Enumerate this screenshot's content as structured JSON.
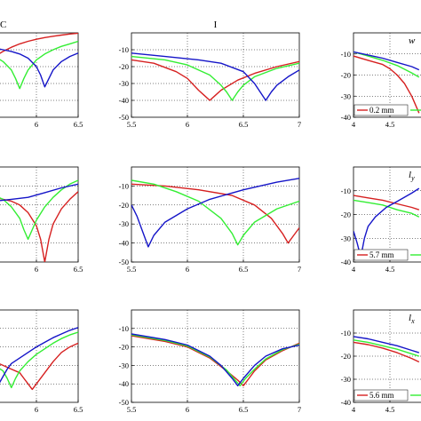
{
  "colors": {
    "red": "#d62020",
    "green": "#33ee33",
    "blue": "#1515c8"
  },
  "chart_data": [
    {
      "type": "line",
      "title": "C",
      "annotation": "",
      "xlim": [
        5.5,
        6.5
      ],
      "ylim": [
        -50,
        0
      ],
      "xticks": [
        "",
        "6",
        "6.5"
      ],
      "xtick_values": [
        5.5,
        6,
        6.5
      ],
      "yticks": [],
      "ytick_values": [],
      "legend": [],
      "series": [
        {
          "color": "red",
          "x": [
            5.5,
            5.6,
            5.7,
            5.8,
            5.9,
            6.0,
            6.1,
            6.2,
            6.3,
            6.4,
            6.5
          ],
          "y": [
            -14,
            -11,
            -8.5,
            -6.5,
            -5,
            -3.8,
            -2.8,
            -2,
            -1.3,
            -0.7,
            -0.2
          ]
        },
        {
          "color": "green",
          "x": [
            5.5,
            5.6,
            5.7,
            5.75,
            5.8,
            5.85,
            5.9,
            6.0,
            6.1,
            6.2,
            6.3,
            6.4,
            6.5
          ],
          "y": [
            -14,
            -17,
            -22,
            -27,
            -33,
            -27,
            -22,
            -16,
            -12.5,
            -10,
            -8,
            -6.5,
            -5
          ]
        },
        {
          "color": "blue",
          "x": [
            5.5,
            5.6,
            5.7,
            5.8,
            5.9,
            6.0,
            6.05,
            6.1,
            6.15,
            6.2,
            6.3,
            6.4,
            6.5
          ],
          "y": [
            -9,
            -10,
            -11,
            -12.5,
            -15,
            -20,
            -25,
            -32,
            -27,
            -22,
            -17,
            -14,
            -12
          ]
        }
      ]
    },
    {
      "type": "line",
      "title": "I",
      "annotation": "",
      "xlim": [
        5.5,
        7
      ],
      "ylim": [
        -50,
        0
      ],
      "xticks": [
        "5.5",
        "6",
        "6.5",
        "7"
      ],
      "xtick_values": [
        5.5,
        6,
        6.5,
        7
      ],
      "yticks": [
        "-10",
        "-20",
        "-30",
        "-40",
        "-50"
      ],
      "ytick_values": [
        -10,
        -20,
        -30,
        -40,
        -50
      ],
      "legend": [],
      "series": [
        {
          "color": "red",
          "x": [
            5.5,
            5.7,
            5.9,
            6.0,
            6.1,
            6.15,
            6.2,
            6.25,
            6.3,
            6.45,
            6.6,
            6.8,
            7.0
          ],
          "y": [
            -16,
            -18,
            -23,
            -27,
            -34,
            -37,
            -40,
            -37,
            -34,
            -28,
            -24,
            -20,
            -17
          ]
        },
        {
          "color": "green",
          "x": [
            5.5,
            5.8,
            6.0,
            6.2,
            6.3,
            6.35,
            6.4,
            6.45,
            6.5,
            6.6,
            6.8,
            7.0
          ],
          "y": [
            -14,
            -16,
            -19,
            -25,
            -31,
            -35,
            -40,
            -35,
            -31,
            -26,
            -21,
            -18
          ]
        },
        {
          "color": "blue",
          "x": [
            5.5,
            5.8,
            6.1,
            6.3,
            6.5,
            6.6,
            6.65,
            6.7,
            6.75,
            6.8,
            6.9,
            7.0
          ],
          "y": [
            -12,
            -14,
            -16,
            -18,
            -23,
            -30,
            -35,
            -40,
            -35,
            -31,
            -26,
            -22
          ]
        }
      ]
    },
    {
      "type": "line",
      "title": "",
      "annotation": "w",
      "xlim": [
        4,
        5
      ],
      "ylim": [
        -40,
        0
      ],
      "xticks": [
        "4",
        "4.5"
      ],
      "xtick_values": [
        4,
        4.5
      ],
      "yticks": [
        "-10",
        "-20",
        "-30",
        "-40"
      ],
      "ytick_values": [
        -10,
        -20,
        -30,
        -40
      ],
      "legend": [
        "0.2 mm"
      ],
      "series": [
        {
          "color": "red",
          "x": [
            4.0,
            4.2,
            4.4,
            4.5,
            4.6,
            4.7,
            4.8,
            4.9
          ],
          "y": [
            -11,
            -13,
            -15,
            -17,
            -20,
            -24,
            -30,
            -38
          ]
        },
        {
          "color": "green",
          "x": [
            4.0,
            4.2,
            4.4,
            4.6,
            4.8,
            4.9
          ],
          "y": [
            -9,
            -11,
            -13,
            -15.5,
            -19,
            -21
          ]
        },
        {
          "color": "blue",
          "x": [
            4.0,
            4.2,
            4.4,
            4.6,
            4.8,
            4.9
          ],
          "y": [
            -9,
            -10.5,
            -12,
            -14,
            -16,
            -17.5
          ]
        }
      ]
    },
    {
      "type": "line",
      "title": "",
      "annotation": "",
      "xlim": [
        5.5,
        6.5
      ],
      "ylim": [
        -50,
        0
      ],
      "xticks": [
        "",
        "6",
        "6.5"
      ],
      "xtick_values": [
        5.5,
        6,
        6.5
      ],
      "yticks": [],
      "ytick_values": [],
      "legend": [],
      "series": [
        {
          "color": "red",
          "x": [
            5.5,
            5.7,
            5.8,
            5.9,
            6.0,
            6.05,
            6.1,
            6.15,
            6.2,
            6.3,
            6.4,
            6.5
          ],
          "y": [
            -16,
            -18,
            -20,
            -24,
            -31,
            -38,
            -50,
            -38,
            -30,
            -22,
            -17,
            -13
          ]
        },
        {
          "color": "green",
          "x": [
            5.5,
            5.6,
            5.7,
            5.8,
            5.85,
            5.9,
            5.95,
            6.0,
            6.1,
            6.2,
            6.3,
            6.4,
            6.5
          ],
          "y": [
            -15,
            -17,
            -21,
            -27,
            -33,
            -38,
            -33,
            -28,
            -21,
            -16,
            -12,
            -9,
            -7
          ]
        },
        {
          "color": "blue",
          "x": [
            5.5,
            5.7,
            5.9,
            6.1,
            6.3,
            6.5
          ],
          "y": [
            -18,
            -17,
            -16,
            -13.5,
            -11,
            -9
          ]
        }
      ]
    },
    {
      "type": "line",
      "title": "",
      "annotation": "",
      "xlim": [
        5.5,
        7
      ],
      "ylim": [
        -50,
        0
      ],
      "xticks": [
        "5.5",
        "6",
        "6.5",
        "7"
      ],
      "xtick_values": [
        5.5,
        6,
        6.5,
        7
      ],
      "yticks": [
        "-10",
        "-20",
        "-30",
        "-40",
        "-50"
      ],
      "ytick_values": [
        -10,
        -20,
        -30,
        -40,
        -50
      ],
      "legend": [],
      "series": [
        {
          "color": "red",
          "x": [
            5.5,
            5.8,
            6.1,
            6.4,
            6.6,
            6.75,
            6.85,
            6.9,
            6.95,
            7.0
          ],
          "y": [
            -9,
            -10,
            -12,
            -15,
            -20,
            -27,
            -35,
            -40,
            -36,
            -32
          ]
        },
        {
          "color": "green",
          "x": [
            5.5,
            5.7,
            5.9,
            6.1,
            6.3,
            6.4,
            6.45,
            6.5,
            6.6,
            6.8,
            7.0
          ],
          "y": [
            -7,
            -9,
            -13,
            -18,
            -27,
            -35,
            -41,
            -36,
            -29,
            -22,
            -18
          ]
        },
        {
          "color": "blue",
          "x": [
            5.5,
            5.55,
            5.6,
            5.65,
            5.7,
            5.8,
            6.0,
            6.2,
            6.5,
            6.8,
            7.0
          ],
          "y": [
            -20,
            -26,
            -34,
            -42,
            -36,
            -29,
            -22,
            -17,
            -12,
            -8,
            -6
          ]
        }
      ]
    },
    {
      "type": "line",
      "title": "",
      "annotation": "ly",
      "xlim": [
        4,
        5
      ],
      "ylim": [
        -40,
        0
      ],
      "xticks": [
        "4",
        "4.5"
      ],
      "xtick_values": [
        4,
        4.5
      ],
      "yticks": [
        "-10",
        "-20",
        "-30",
        "-40"
      ],
      "ytick_values": [
        -10,
        -20,
        -30,
        -40
      ],
      "legend": [
        "5.7 mm"
      ],
      "series": [
        {
          "color": "red",
          "x": [
            4.0,
            4.2,
            4.4,
            4.6,
            4.8,
            4.9
          ],
          "y": [
            -12,
            -13,
            -14,
            -15.5,
            -17,
            -18
          ]
        },
        {
          "color": "green",
          "x": [
            4.0,
            4.2,
            4.4,
            4.6,
            4.8,
            4.9
          ],
          "y": [
            -14,
            -15,
            -16,
            -18,
            -19.5,
            -21
          ]
        },
        {
          "color": "blue",
          "x": [
            4.0,
            4.05,
            4.1,
            4.15,
            4.2,
            4.3,
            4.45,
            4.6,
            4.8,
            4.9
          ],
          "y": [
            -27,
            -32,
            -38,
            -30,
            -25,
            -21,
            -17,
            -14.5,
            -11,
            -9
          ]
        }
      ]
    },
    {
      "type": "line",
      "title": "",
      "annotation": "",
      "xlim": [
        5.5,
        6.5
      ],
      "ylim": [
        -50,
        0
      ],
      "xticks": [
        "",
        "6",
        "6.5"
      ],
      "xtick_values": [
        5.5,
        6,
        6.5
      ],
      "yticks": [],
      "ytick_values": [],
      "legend": [],
      "series": [
        {
          "color": "red",
          "x": [
            5.5,
            5.6,
            5.7,
            5.8,
            5.85,
            5.9,
            5.95,
            6.0,
            6.1,
            6.2,
            6.3,
            6.4,
            6.5
          ],
          "y": [
            -28,
            -30,
            -32,
            -34,
            -37,
            -40,
            -43,
            -40,
            -34,
            -28,
            -23,
            -20,
            -18
          ]
        },
        {
          "color": "green",
          "x": [
            5.5,
            5.6,
            5.65,
            5.7,
            5.75,
            5.8,
            5.9,
            6.0,
            6.1,
            6.2,
            6.3,
            6.4,
            6.5
          ],
          "y": [
            -30,
            -33,
            -37,
            -42,
            -37,
            -33,
            -28,
            -24,
            -21,
            -18,
            -15.5,
            -13.5,
            -12
          ]
        },
        {
          "color": "blue",
          "x": [
            5.5,
            5.55,
            5.6,
            5.65,
            5.7,
            5.8,
            5.9,
            6.0,
            6.1,
            6.2,
            6.3,
            6.4,
            6.5
          ],
          "y": [
            -35,
            -40,
            -36,
            -32,
            -29,
            -26,
            -23,
            -20,
            -17.5,
            -15,
            -13,
            -11,
            -9.5
          ]
        }
      ]
    },
    {
      "type": "line",
      "title": "",
      "annotation": "",
      "xlim": [
        5.5,
        7
      ],
      "ylim": [
        -50,
        0
      ],
      "xticks": [
        "5.5",
        "6",
        "6.5",
        "7"
      ],
      "xtick_values": [
        5.5,
        6,
        6.5,
        7
      ],
      "yticks": [
        "-10",
        "-20",
        "-30",
        "-40",
        "-50"
      ],
      "ytick_values": [
        -10,
        -20,
        -30,
        -40,
        -50
      ],
      "legend": [],
      "series": [
        {
          "color": "red",
          "x": [
            5.5,
            5.8,
            6.0,
            6.2,
            6.35,
            6.45,
            6.5,
            6.55,
            6.6,
            6.7,
            6.85,
            7.0
          ],
          "y": [
            -14,
            -17,
            -20,
            -26,
            -33,
            -38,
            -41,
            -37,
            -33,
            -27,
            -22,
            -18
          ]
        },
        {
          "color": "green",
          "x": [
            5.5,
            5.8,
            6.0,
            6.2,
            6.35,
            6.42,
            6.47,
            6.52,
            6.6,
            6.7,
            6.85,
            7.0
          ],
          "y": [
            -13.5,
            -16.5,
            -19.5,
            -25.5,
            -32.5,
            -37.5,
            -41,
            -37,
            -32,
            -26.5,
            -21.5,
            -18.5
          ]
        },
        {
          "color": "blue",
          "x": [
            5.5,
            5.8,
            6.0,
            6.2,
            6.3,
            6.4,
            6.45,
            6.5,
            6.6,
            6.7,
            6.85,
            7.0
          ],
          "y": [
            -13,
            -16,
            -19,
            -25,
            -30,
            -37,
            -41,
            -37,
            -30,
            -25,
            -21,
            -19
          ]
        }
      ]
    },
    {
      "type": "line",
      "title": "",
      "annotation": "lx",
      "xlim": [
        4,
        5
      ],
      "ylim": [
        -40,
        0
      ],
      "xticks": [
        "4",
        "4.5"
      ],
      "xtick_values": [
        4,
        4.5
      ],
      "yticks": [
        "-10",
        "-20",
        "-30",
        "-40"
      ],
      "ytick_values": [
        -10,
        -20,
        -30,
        -40
      ],
      "legend": [
        "5.6 mm"
      ],
      "series": [
        {
          "color": "red",
          "x": [
            4.0,
            4.2,
            4.4,
            4.6,
            4.8,
            4.9
          ],
          "y": [
            -14,
            -15,
            -16.5,
            -18.5,
            -21,
            -22.5
          ]
        },
        {
          "color": "green",
          "x": [
            4.0,
            4.2,
            4.4,
            4.6,
            4.8,
            4.9
          ],
          "y": [
            -13,
            -14,
            -15.5,
            -17,
            -19,
            -20
          ]
        },
        {
          "color": "blue",
          "x": [
            4.0,
            4.2,
            4.4,
            4.6,
            4.8,
            4.9
          ],
          "y": [
            -11.5,
            -12.5,
            -14,
            -15.5,
            -17.5,
            -18.5
          ]
        }
      ]
    }
  ]
}
